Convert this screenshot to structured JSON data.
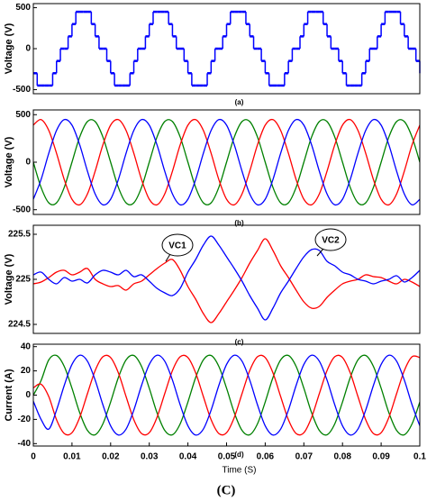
{
  "figure_label": "(C)",
  "chart_data": [
    {
      "type": "step",
      "label": "(a)",
      "ylabel": "Voltage  (V)",
      "xlim": [
        0,
        0.1
      ],
      "ylim": [
        -550,
        550
      ],
      "yticks": [
        500,
        0,
        -500
      ],
      "x": [
        0,
        0.001,
        0.002,
        0.003,
        0.004,
        0.005,
        0.006,
        0.007,
        0.008,
        0.009,
        0.01,
        0.011,
        0.012,
        0.013,
        0.014,
        0.015,
        0.016,
        0.017,
        0.018,
        0.019,
        0.02,
        0.021,
        0.022,
        0.023,
        0.024,
        0.025,
        0.026,
        0.027,
        0.028,
        0.029,
        0.03,
        0.031,
        0.032,
        0.033,
        0.034,
        0.035,
        0.036,
        0.037,
        0.038,
        0.039,
        0.04,
        0.041,
        0.042,
        0.043,
        0.044,
        0.045,
        0.046,
        0.047,
        0.048,
        0.049,
        0.05,
        0.051,
        0.052,
        0.053,
        0.054,
        0.055,
        0.056,
        0.057,
        0.058,
        0.059,
        0.06,
        0.061,
        0.062,
        0.063,
        0.064,
        0.065,
        0.066,
        0.067,
        0.068,
        0.069,
        0.07,
        0.071,
        0.072,
        0.073,
        0.074,
        0.075,
        0.076,
        0.077,
        0.078,
        0.079,
        0.08,
        0.081,
        0.082,
        0.083,
        0.084,
        0.085,
        0.086,
        0.087,
        0.088,
        0.089,
        0.09,
        0.091,
        0.092,
        0.093,
        0.094,
        0.095,
        0.096,
        0.097,
        0.098,
        0.099,
        0.1
      ],
      "series": [
        {
          "color": "#0000ff",
          "values": [
            -300,
            -450,
            -450,
            -450,
            -450,
            -300,
            -150,
            0,
            0,
            150,
            300,
            450,
            450,
            450,
            450,
            300,
            150,
            0,
            0,
            -150,
            -300,
            -450,
            -450,
            -450,
            -450,
            -300,
            -150,
            0,
            0,
            150,
            300,
            450,
            450,
            450,
            450,
            300,
            150,
            0,
            0,
            -150,
            -300,
            -450,
            -450,
            -450,
            -450,
            -300,
            -150,
            0,
            0,
            150,
            300,
            450,
            450,
            450,
            450,
            300,
            150,
            0,
            0,
            -150,
            -300,
            -450,
            -450,
            -450,
            -450,
            -300,
            -150,
            0,
            0,
            150,
            300,
            450,
            450,
            450,
            450,
            300,
            150,
            0,
            0,
            -150,
            -300,
            -450,
            -450,
            -450,
            -450,
            -300,
            -150,
            0,
            0,
            150,
            300,
            450,
            450,
            450,
            450,
            300,
            150,
            0,
            0,
            -150,
            -300
          ]
        }
      ]
    },
    {
      "type": "line",
      "label": "(b)",
      "ylabel": "Voltage  (V)",
      "xlim": [
        0,
        0.1
      ],
      "ylim": [
        -550,
        550
      ],
      "yticks": [
        500,
        0,
        -500
      ],
      "x": [
        0,
        0.002,
        0.004,
        0.006,
        0.008,
        0.01,
        0.012,
        0.014,
        0.016,
        0.018,
        0.02,
        0.022,
        0.024,
        0.026,
        0.028,
        0.03,
        0.032,
        0.034,
        0.036,
        0.038,
        0.04,
        0.042,
        0.044,
        0.046,
        0.048,
        0.05,
        0.052,
        0.054,
        0.056,
        0.058,
        0.06,
        0.062,
        0.064,
        0.066,
        0.068,
        0.07,
        0.072,
        0.074,
        0.076,
        0.078,
        0.08,
        0.082,
        0.084,
        0.086,
        0.088,
        0.09,
        0.092,
        0.094,
        0.096,
        0.098,
        0.1
      ],
      "series": [
        {
          "color": "#008000",
          "values": [
            0,
            -265,
            -428,
            -428,
            -265,
            0,
            265,
            428,
            428,
            265,
            0,
            -265,
            -428,
            -428,
            -265,
            0,
            265,
            428,
            428,
            265,
            0,
            -265,
            -428,
            -428,
            -265,
            0,
            265,
            428,
            428,
            265,
            0,
            -265,
            -428,
            -428,
            -265,
            0,
            265,
            428,
            428,
            265,
            0,
            -265,
            -428,
            -428,
            -265,
            0,
            265,
            428,
            428,
            265,
            0
          ]
        },
        {
          "color": "#ff0000",
          "values": [
            390,
            448,
            334,
            94,
            -183,
            -390,
            -448,
            -334,
            -94,
            183,
            390,
            448,
            334,
            94,
            -183,
            -390,
            -448,
            -334,
            -94,
            183,
            390,
            448,
            334,
            94,
            -183,
            -390,
            -448,
            -334,
            -94,
            183,
            390,
            448,
            334,
            94,
            -183,
            -390,
            -448,
            -334,
            -94,
            183,
            390,
            448,
            334,
            94,
            -183,
            -390,
            -448,
            -334,
            -94,
            183,
            390
          ]
        },
        {
          "color": "#0000ff",
          "values": [
            -390,
            -183,
            94,
            334,
            448,
            390,
            183,
            -94,
            -334,
            -448,
            -390,
            -183,
            94,
            334,
            448,
            390,
            183,
            -94,
            -334,
            -448,
            -390,
            -183,
            94,
            334,
            448,
            390,
            183,
            -94,
            -334,
            -448,
            -390,
            -183,
            94,
            334,
            448,
            390,
            183,
            -94,
            -334,
            -448,
            -390,
            -183,
            94,
            334,
            448,
            390,
            183,
            -94,
            -334,
            -448,
            -390
          ]
        }
      ]
    },
    {
      "type": "line",
      "label": "(c)",
      "ylabel": "Voltage  (V)",
      "xlim": [
        0,
        0.1
      ],
      "ylim": [
        224.4,
        225.6
      ],
      "yticks": [
        225.5,
        225,
        224.5
      ],
      "annotations": [
        {
          "text": "VC1"
        },
        {
          "text": "VC2"
        }
      ],
      "x": [
        0,
        0.002,
        0.004,
        0.006,
        0.008,
        0.01,
        0.012,
        0.014,
        0.016,
        0.018,
        0.02,
        0.022,
        0.024,
        0.026,
        0.028,
        0.03,
        0.032,
        0.034,
        0.036,
        0.038,
        0.04,
        0.042,
        0.044,
        0.046,
        0.048,
        0.05,
        0.052,
        0.054,
        0.056,
        0.058,
        0.06,
        0.062,
        0.064,
        0.066,
        0.068,
        0.07,
        0.072,
        0.074,
        0.076,
        0.078,
        0.08,
        0.082,
        0.084,
        0.086,
        0.088,
        0.09,
        0.092,
        0.094,
        0.096,
        0.098,
        0.1
      ],
      "series": [
        {
          "color": "#ff0000",
          "values": [
            224.95,
            224.97,
            225.02,
            225.08,
            225.1,
            225.05,
            225.08,
            225.12,
            225.0,
            224.95,
            224.92,
            224.93,
            224.88,
            224.95,
            224.98,
            225.05,
            225.12,
            225.18,
            225.22,
            225.1,
            224.92,
            224.78,
            224.62,
            224.52,
            224.62,
            224.75,
            224.88,
            225.02,
            225.18,
            225.32,
            225.45,
            225.32,
            225.15,
            225.02,
            224.88,
            224.75,
            224.68,
            224.7,
            224.8,
            224.88,
            224.95,
            224.98,
            225.0,
            225.05,
            225.03,
            225.02,
            224.98,
            224.95,
            225.0,
            224.97,
            224.92
          ]
        },
        {
          "color": "#0000ff",
          "values": [
            225.05,
            225.08,
            225.0,
            224.95,
            225.02,
            224.98,
            225.0,
            224.96,
            225.05,
            225.1,
            225.08,
            225.05,
            225.1,
            225.03,
            225.05,
            224.98,
            224.9,
            224.85,
            224.82,
            224.9,
            225.08,
            225.22,
            225.38,
            225.48,
            225.38,
            225.25,
            225.12,
            224.98,
            224.82,
            224.68,
            224.55,
            224.68,
            224.85,
            224.98,
            225.12,
            225.25,
            225.33,
            225.32,
            225.2,
            225.15,
            225.08,
            225.05,
            225.0,
            224.98,
            224.95,
            224.98,
            225.0,
            225.04,
            224.97,
            225.02,
            225.1
          ]
        }
      ]
    },
    {
      "type": "line",
      "label": "(d)",
      "ylabel": "Current  (A)",
      "xlabel": "Time (S)",
      "xlim": [
        0,
        0.1
      ],
      "ylim": [
        -42,
        42
      ],
      "yticks": [
        40,
        20,
        0,
        -20,
        -40
      ],
      "xticks": [
        0,
        0.01,
        0.02,
        0.03,
        0.04,
        0.05,
        0.06,
        0.07,
        0.08,
        0.09,
        0.1
      ],
      "x": [
        0,
        0.002,
        0.004,
        0.006,
        0.008,
        0.01,
        0.012,
        0.014,
        0.016,
        0.018,
        0.02,
        0.022,
        0.024,
        0.026,
        0.028,
        0.03,
        0.032,
        0.034,
        0.036,
        0.038,
        0.04,
        0.042,
        0.044,
        0.046,
        0.048,
        0.05,
        0.052,
        0.054,
        0.056,
        0.058,
        0.06,
        0.062,
        0.064,
        0.066,
        0.068,
        0.07,
        0.072,
        0.074,
        0.076,
        0.078,
        0.08,
        0.082,
        0.084,
        0.086,
        0.088,
        0.09,
        0.092,
        0.094,
        0.096,
        0.098,
        0.1
      ],
      "series": [
        {
          "color": "#008000",
          "values": [
            0,
            12,
            29.1,
            32.7,
            23.7,
            5.7,
            -14.5,
            -29.1,
            -32.7,
            -23.7,
            -5.7,
            14.5,
            29.1,
            32.7,
            23.7,
            5.7,
            -14.5,
            -29.1,
            -32.7,
            -23.7,
            -5.7,
            14.5,
            29.1,
            32.7,
            23.7,
            5.7,
            -14.5,
            -29.1,
            -32.7,
            -23.7,
            -5.7,
            14.5,
            29.1,
            32.7,
            23.7,
            5.7,
            -14.5,
            -29.1,
            -32.7,
            -23.7,
            -5.7,
            14.5,
            29.1,
            32.7,
            23.7,
            5.7,
            -14.5,
            -29.1,
            -32.7,
            -23.7,
            -5.7
          ]
        },
        {
          "color": "#ff0000",
          "values": [
            6,
            9,
            -1.2,
            -20.3,
            -31.7,
            -31.0,
            -18.4,
            1.2,
            20.3,
            31.7,
            31.0,
            18.4,
            -1.2,
            -20.3,
            -31.7,
            -31.0,
            -18.4,
            1.2,
            20.3,
            31.7,
            31.0,
            18.4,
            -1.2,
            -20.3,
            -31.7,
            -31.0,
            -18.4,
            1.2,
            20.3,
            31.7,
            31.0,
            18.4,
            -1.2,
            -20.3,
            -31.7,
            -31.0,
            -18.4,
            1.2,
            20.3,
            31.7,
            31.0,
            18.4,
            -1.2,
            -20.3,
            -31.7,
            -31.0,
            -18.4,
            1.2,
            20.3,
            31.7,
            31.0
          ]
        },
        {
          "color": "#0000ff",
          "values": [
            -5,
            -20,
            -28.0,
            -12.4,
            8.0,
            25.3,
            32.9,
            28.0,
            12.4,
            -8.0,
            -25.3,
            -32.9,
            -28.0,
            -12.4,
            8.0,
            25.3,
            32.9,
            28.0,
            12.4,
            -8.0,
            -25.3,
            -32.9,
            -28.0,
            -12.4,
            8.0,
            25.3,
            32.9,
            28.0,
            12.4,
            -8.0,
            -25.3,
            -32.9,
            -28.0,
            -12.4,
            8.0,
            25.3,
            32.9,
            28.0,
            12.4,
            -8.0,
            -25.3,
            -32.9,
            -28.0,
            -12.4,
            8.0,
            25.3,
            32.9,
            28.0,
            12.4,
            -8.0,
            -25.3
          ]
        }
      ]
    }
  ]
}
